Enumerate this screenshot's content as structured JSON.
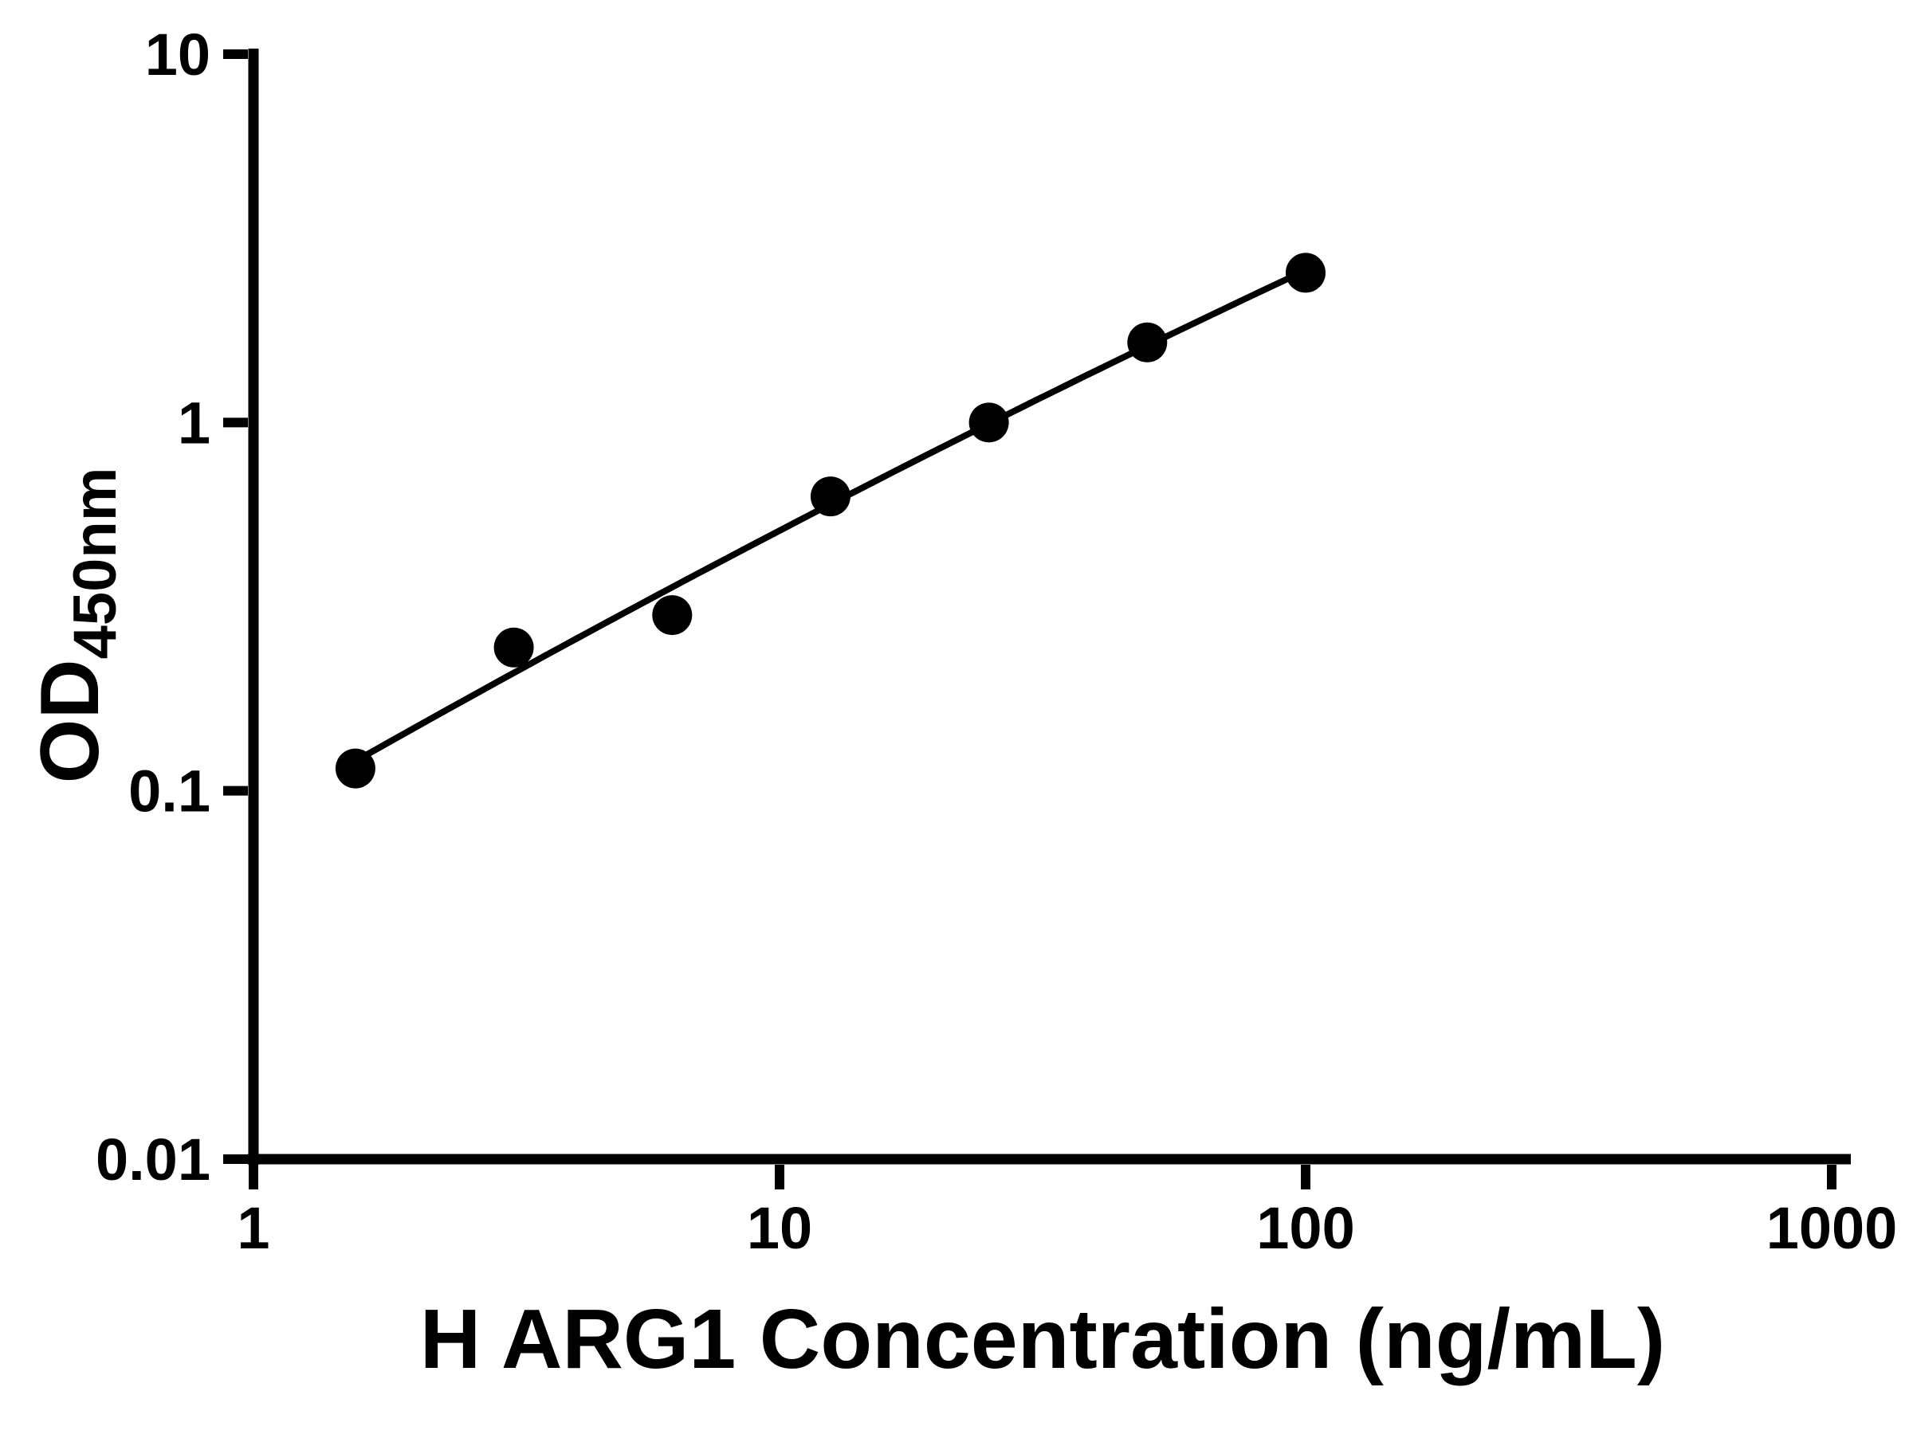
{
  "chart_data": {
    "type": "scatter",
    "title": "",
    "xlabel": "H ARG1 Concentration (ng/mL)",
    "ylabel": {
      "main": "OD",
      "sub": "450nm"
    },
    "x_scale": "log",
    "y_scale": "log",
    "xlim": [
      1,
      1000
    ],
    "ylim": [
      0.01,
      10
    ],
    "x_ticks": [
      1,
      10,
      100,
      1000
    ],
    "x_tick_labels": [
      "1",
      "10",
      "100",
      "1000"
    ],
    "y_ticks": [
      10,
      1,
      0.1,
      0.01
    ],
    "y_tick_labels": [
      "10",
      "1",
      "0.1",
      "0.01"
    ],
    "grid": false,
    "legend": false,
    "series": [
      {
        "x": [
          1.5625,
          3.125,
          6.25,
          12.5,
          25,
          50,
          100
        ],
        "y": [
          0.115,
          0.245,
          0.3,
          0.63,
          1.0,
          1.65,
          2.55
        ],
        "marker": "circle",
        "fit": "smooth-curve",
        "color": "#000000"
      }
    ],
    "colors": {
      "axis": "#000000",
      "marker": "#000000",
      "line": "#000000",
      "background": "#ffffff"
    }
  }
}
